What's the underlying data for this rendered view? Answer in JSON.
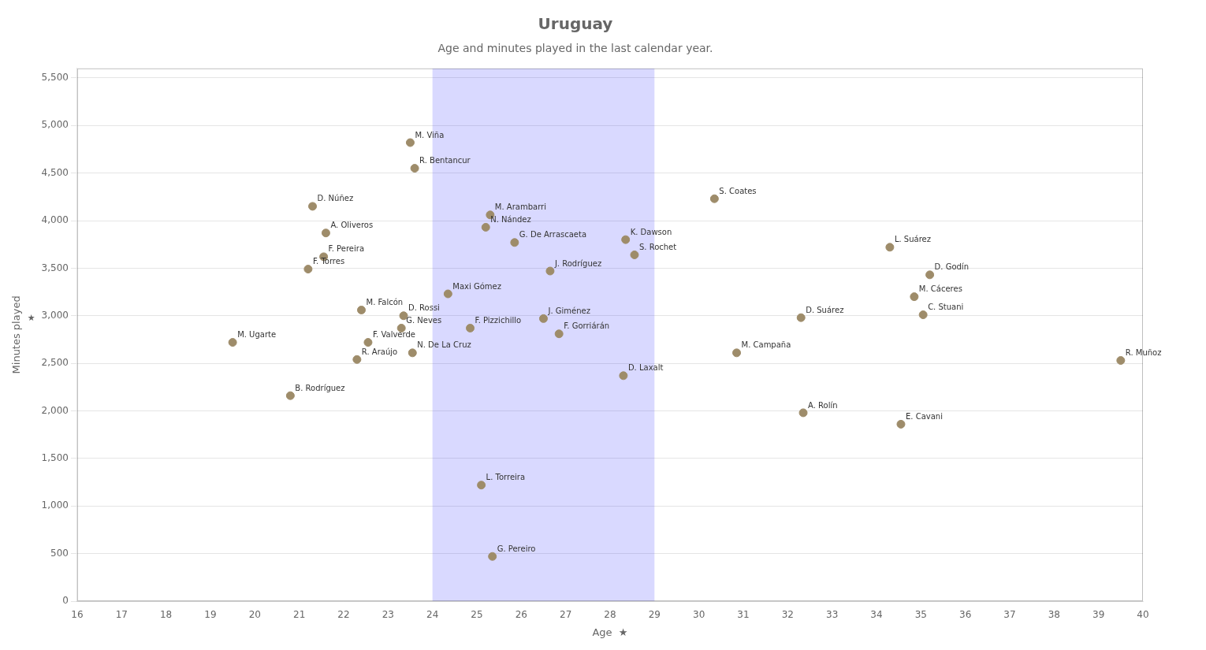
{
  "chart_data": {
    "type": "scatter",
    "title": "Uruguay",
    "subtitle": "Age and minutes played in the last calendar year.",
    "xlabel": "Age  ★",
    "ylabel": "Minutes played",
    "annotations": [
      "★"
    ],
    "color": "#9e8c6a",
    "highlight_x": [
      24,
      29
    ],
    "highlight_color": "#0000ff",
    "xlim": [
      16,
      40
    ],
    "ylim": [
      0,
      5600
    ],
    "xticks": [
      16,
      17,
      18,
      19,
      20,
      21,
      22,
      23,
      24,
      25,
      26,
      27,
      28,
      29,
      30,
      31,
      32,
      33,
      34,
      35,
      36,
      37,
      38,
      39,
      40
    ],
    "yticks": [
      0,
      500,
      1000,
      1500,
      2000,
      2500,
      3000,
      3500,
      4000,
      4500,
      5000,
      5500
    ],
    "grid": "y",
    "point_labels": [
      "M. Viña",
      "R. Bentancur",
      "D. Núñez",
      "A. Oliveros",
      "F. Pereira",
      "F. Torres",
      "M. Falcón",
      "D. Rossi",
      "G. Neves",
      "F. Valverde",
      "N. De La Cruz",
      "R. Araújo",
      "M. Ugarte",
      "B. Rodríguez",
      "Maxi Gómez",
      "F. Pizzichillo",
      "M. Arambarri",
      "N. Nández",
      "G. De Arrascaeta",
      "J. Rodríguez",
      "J. Giménez",
      "F. Gorriárán",
      "S. Rochet",
      "K. Dawson",
      "D. Laxalt",
      "L. Torreira",
      "G. Pereiro",
      "S. Coates",
      "M. Campaña",
      "D. Suárez",
      "L. Suárez",
      "D. Godín",
      "M. Cáceres",
      "C. Stuani",
      "A. Rolín",
      "E. Cavani",
      "R. Muñoz"
    ],
    "x": [
      23.5,
      23.6,
      21.3,
      21.6,
      21.55,
      21.2,
      22.4,
      23.35,
      23.3,
      22.55,
      23.55,
      22.3,
      19.5,
      20.8,
      24.35,
      24.85,
      25.3,
      25.2,
      25.85,
      26.65,
      26.5,
      26.85,
      28.55,
      28.35,
      28.3,
      25.1,
      25.35,
      30.35,
      30.85,
      32.3,
      34.3,
      35.2,
      34.85,
      35.05,
      32.35,
      34.55,
      39.5
    ],
    "values": [
      4820,
      4550,
      4150,
      3870,
      3620,
      3490,
      3060,
      3000,
      2870,
      2720,
      2610,
      2540,
      2720,
      2160,
      3230,
      2870,
      4060,
      3930,
      3770,
      3470,
      2970,
      2810,
      3640,
      3800,
      2370,
      1220,
      470,
      4230,
      2610,
      2980,
      3720,
      3430,
      3200,
      3010,
      1980,
      1860,
      2530
    ]
  }
}
